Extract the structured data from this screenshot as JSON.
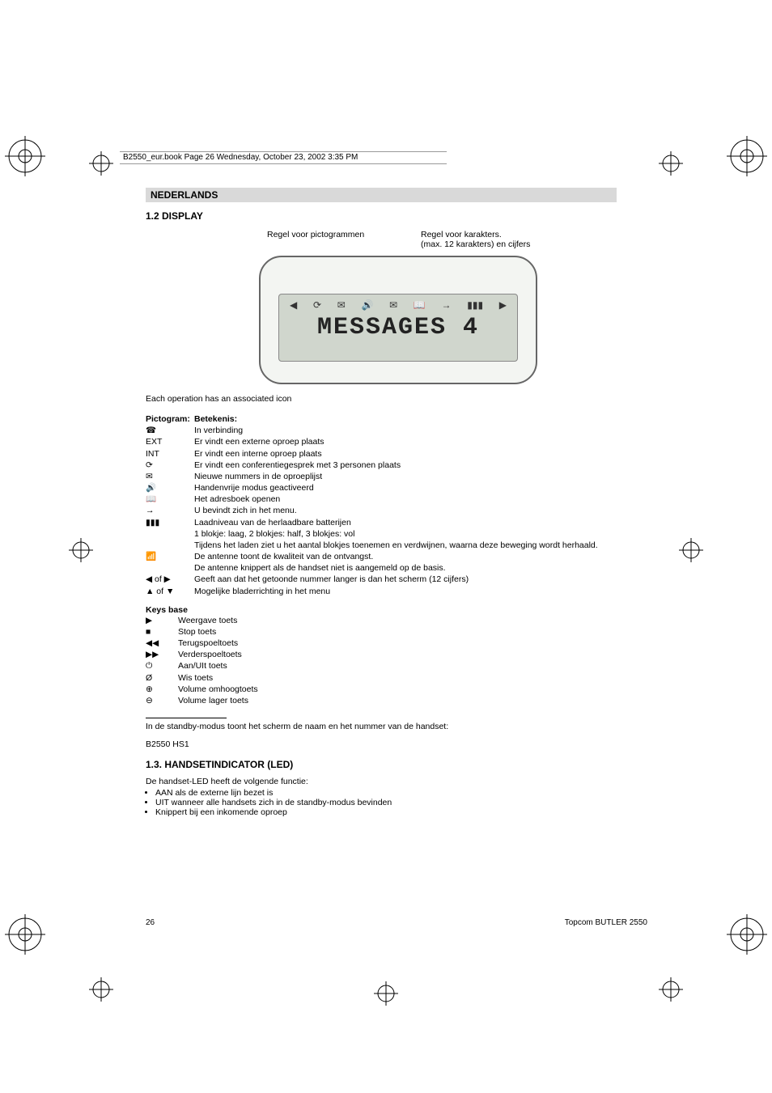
{
  "header_running": "B2550_eur.book  Page 26  Wednesday, October 23, 2002  3:35 PM",
  "language": "NEDERLANDS",
  "section_display": "1.2 DISPLAY",
  "caption_left": "Regel voor pictogrammen",
  "caption_right_1": "Regel voor karakters.",
  "caption_right_2": "(max. 12 karakters) en cijfers",
  "display_sample_text": "MESSAGES 4",
  "intro_text": "Each operation has an associated icon",
  "pictogram_header_col1": "Pictogram:",
  "pictogram_header_col2": "Betekenis:",
  "pictograms": [
    {
      "icon": "☎",
      "meaning": "In verbinding"
    },
    {
      "icon": "EXT",
      "meaning": "Er vindt een externe oproep plaats"
    },
    {
      "icon": "INT",
      "meaning": "Er vindt een interne oproep plaats"
    },
    {
      "icon": "⟳",
      "meaning": "Er vindt een conferentiegesprek met 3 personen plaats"
    },
    {
      "icon": "✉",
      "meaning": "Nieuwe nummers in de oproeplijst"
    },
    {
      "icon": "🔊",
      "meaning": "Handenvrije modus geactiveerd"
    },
    {
      "icon": "📖",
      "meaning": "Het adresboek openen"
    },
    {
      "icon": "→",
      "meaning": "U bevindt zich in het menu."
    },
    {
      "icon": "▮▮▮",
      "meaning": "Laadniveau van de herlaadbare batterijen"
    },
    {
      "icon": "",
      "meaning": "1 blokje: laag, 2 blokjes: half, 3 blokjes: vol"
    },
    {
      "icon": "",
      "meaning": "Tijdens het laden ziet u het aantal blokjes toenemen en verdwijnen, waarna deze beweging wordt herhaald."
    },
    {
      "icon": "📶",
      "meaning": "De antenne toont de kwaliteit van de ontvangst."
    },
    {
      "icon": "",
      "meaning": "De antenne knippert als de handset niet is aangemeld op de basis."
    },
    {
      "icon": "◀ of ▶",
      "meaning": "Geeft aan dat het getoonde nummer langer is dan het scherm (12 cijfers)"
    },
    {
      "icon": "▲ of ▼",
      "meaning": "Mogelijke bladerrichting in het menu"
    }
  ],
  "keys_title": "Keys base",
  "keys": [
    {
      "icon": "▶",
      "label": "Weergave toets"
    },
    {
      "icon": "■",
      "label": "Stop toets"
    },
    {
      "icon": "◀◀",
      "label": "Terugspoeltoets"
    },
    {
      "icon": "▶▶",
      "label": "Verderspoeltoets"
    },
    {
      "icon": "⏻",
      "label": "Aan/UIt toets"
    },
    {
      "icon": "Ø",
      "label": "Wis toets"
    },
    {
      "icon": "⊕",
      "label": "Volume omhoogtoets"
    },
    {
      "icon": "⊖",
      "label": "Volume lager toets"
    }
  ],
  "standby_text": "In de standby-modus toont het scherm de naam en het nummer van de handset:",
  "model_text": "B2550 HS1",
  "section_led": "1.3. HANDSETINDICATOR (LED)",
  "led_intro": "De handset-LED heeft de volgende functie:",
  "led_bullets": [
    "AAN als de externe lijn bezet is",
    "UIT wanneer alle handsets zich in de standby-modus bevinden",
    "Knippert bij een inkomende oproep"
  ],
  "page_number": "26",
  "footer_title": "Topcom BUTLER 2550",
  "colors": {
    "header_bg": "#d9d9d9",
    "display_bg": "#f3f5f2",
    "display_inner": "#d0d6cd"
  }
}
